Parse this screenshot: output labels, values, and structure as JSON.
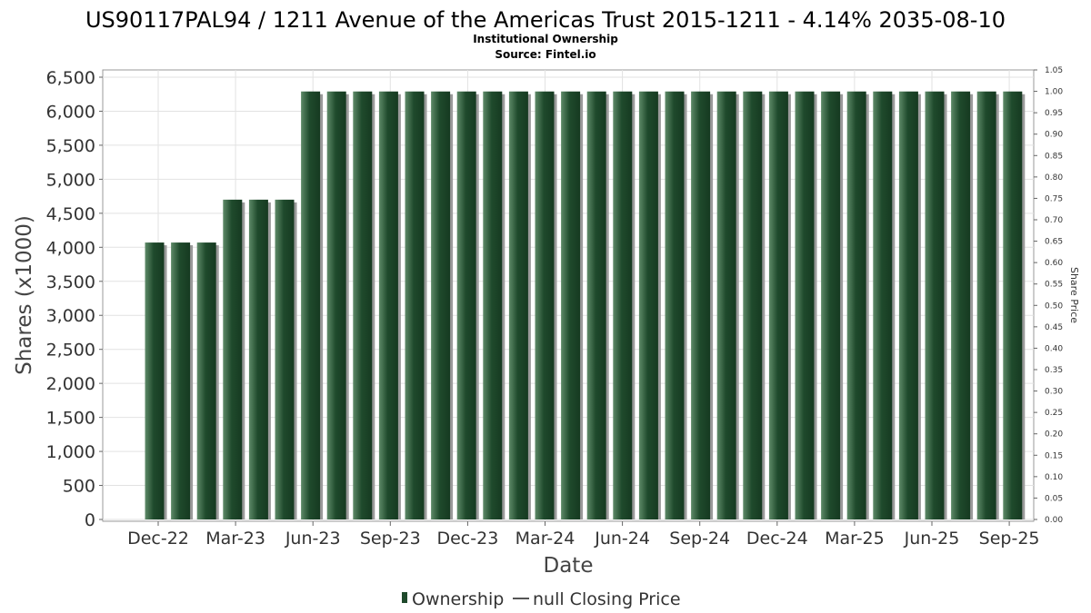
{
  "chart_data": {
    "type": "bar",
    "title": "US90117PAL94 / 1211 Avenue of the Americas Trust 2015-1211 - 4.14% 2035-08-10",
    "subtitle": "Institutional Ownership",
    "source": "Source: Fintel.io",
    "xlabel": "Date",
    "ylabel": "Shares (x1000)",
    "y2label": "Share Price",
    "ylim": [
      0,
      6500
    ],
    "y2lim": [
      0,
      1.05
    ],
    "yticks": [
      "0",
      "500",
      "1,000",
      "1,500",
      "2,000",
      "2,500",
      "3,000",
      "3,500",
      "4,000",
      "4,500",
      "5,000",
      "5,500",
      "6,000",
      "6,500"
    ],
    "y2ticks": [
      "0.00",
      "0.05",
      "0.10",
      "0.15",
      "0.20",
      "0.25",
      "0.30",
      "0.35",
      "0.40",
      "0.45",
      "0.50",
      "0.55",
      "0.60",
      "0.65",
      "0.70",
      "0.75",
      "0.80",
      "0.85",
      "0.90",
      "0.95",
      "1.00",
      "1.05"
    ],
    "xticks": [
      "Dec-22",
      "Mar-23",
      "Jun-23",
      "Sep-23",
      "Dec-23",
      "Mar-24",
      "Jun-24",
      "Sep-24",
      "Dec-24",
      "Mar-25",
      "Jun-25",
      "Sep-25"
    ],
    "grid": true,
    "legend_position": "bottom-center",
    "series": [
      {
        "name": "Ownership",
        "color": "#1f4a2c",
        "values": [
          4070,
          4070,
          4070,
          4700,
          4700,
          4700,
          6290,
          6290,
          6290,
          6290,
          6290,
          6290,
          6290,
          6290,
          6290,
          6290,
          6290,
          6290,
          6290,
          6290,
          6290,
          6290,
          6290,
          6290,
          6290,
          6290,
          6290,
          6290,
          6290,
          6290,
          6290,
          6290,
          6290,
          6290
        ]
      },
      {
        "name": "null Closing Price",
        "color": "#555555",
        "values": []
      }
    ]
  }
}
